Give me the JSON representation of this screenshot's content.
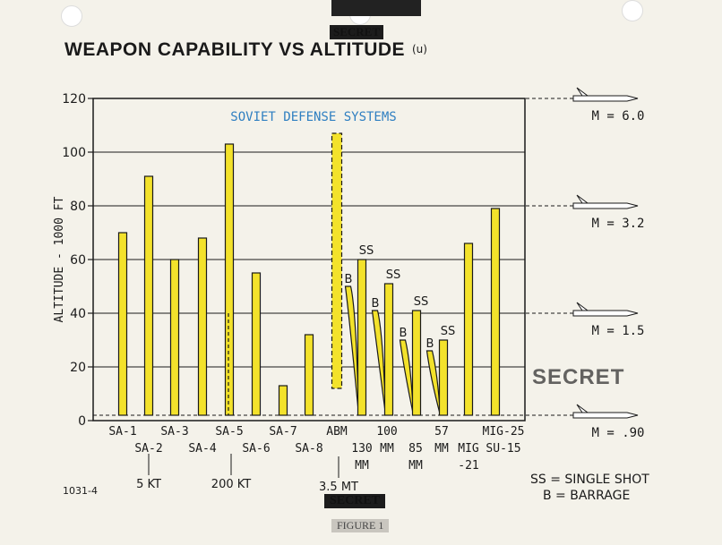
{
  "doc": {
    "title": "WEAPON CAPABILITY VS ALTITUDE",
    "title_mark": "(u)",
    "classification_stamp": "SECRET",
    "figure_label": "FIGURE 1",
    "doc_number": "1031-4",
    "legend_ss": "SS = SINGLE SHOT",
    "legend_b": "B = BARRAGE"
  },
  "chart_data": {
    "type": "bar",
    "title": "SOVIET DEFENSE SYSTEMS",
    "ylabel": "ALTITUDE - 1000 FT",
    "ylim": [
      0,
      120
    ],
    "yticks": [
      0,
      20,
      40,
      60,
      80,
      100,
      120
    ],
    "grid": true,
    "colors": {
      "bar": "#f3e22b",
      "outline": "#1a1a1a",
      "title": "#2f7fc1"
    },
    "bars": [
      {
        "label": "SA-1",
        "value": 70
      },
      {
        "label": "SA-2",
        "value": 91
      },
      {
        "label": "SA-3",
        "value": 60
      },
      {
        "label": "SA-4",
        "value": 68
      },
      {
        "label": "SA-5",
        "value": 103
      },
      {
        "label": "SA-6",
        "value": 55
      },
      {
        "label": "SA-7",
        "value": 13
      },
      {
        "label": "SA-8",
        "value": 32
      },
      {
        "label": "ABM",
        "value": 107,
        "min": 12,
        "dashed": true
      },
      {
        "label": "130 MM",
        "value": 60,
        "barrage": 50
      },
      {
        "label": "100 MM",
        "value": 51,
        "barrage": 41
      },
      {
        "label": "85 MM",
        "value": 41,
        "barrage": 30
      },
      {
        "label": "57 MM",
        "value": 30,
        "barrage": 26
      },
      {
        "label": "MIG -21",
        "value": 66
      },
      {
        "label": "MIG-25 SU-15",
        "value": 79
      }
    ],
    "x_labels": [
      {
        "text": "SA-1",
        "row": 1
      },
      {
        "text": "SA-2",
        "row": 2
      },
      {
        "text": "SA-3",
        "row": 1
      },
      {
        "text": "SA-4",
        "row": 2
      },
      {
        "text": "SA-5",
        "row": 1
      },
      {
        "text": "SA-6",
        "row": 2
      },
      {
        "text": "SA-7",
        "row": 1
      },
      {
        "text": "SA-8",
        "row": 2
      },
      {
        "text": "ABM",
        "row": 1
      },
      {
        "text": "130",
        "row": 2
      },
      {
        "text": "MM",
        "row": 3
      },
      {
        "text": "100",
        "row": 1
      },
      {
        "text": "MM",
        "row": 2
      },
      {
        "text": "85",
        "row": 2
      },
      {
        "text": "MM",
        "row": 3
      },
      {
        "text": "57",
        "row": 1
      },
      {
        "text": "MM",
        "row": 2
      },
      {
        "text": "MIG",
        "row": 2
      },
      {
        "text": "-21",
        "row": 3
      },
      {
        "text": "MIG-25",
        "row": 1
      },
      {
        "text": "SU-15",
        "row": 2
      }
    ],
    "ss_label": "SS",
    "b_label": "B",
    "yield_labels": [
      "5 KT",
      "200 KT",
      "3.5 MT"
    ],
    "mach_lines": [
      {
        "label": "M = 6.0",
        "altitude": 120
      },
      {
        "label": "M = 3.2",
        "altitude": 80
      },
      {
        "label": "M = 1.5",
        "altitude": 40
      },
      {
        "label": "M = .90",
        "altitude": 2
      }
    ]
  }
}
